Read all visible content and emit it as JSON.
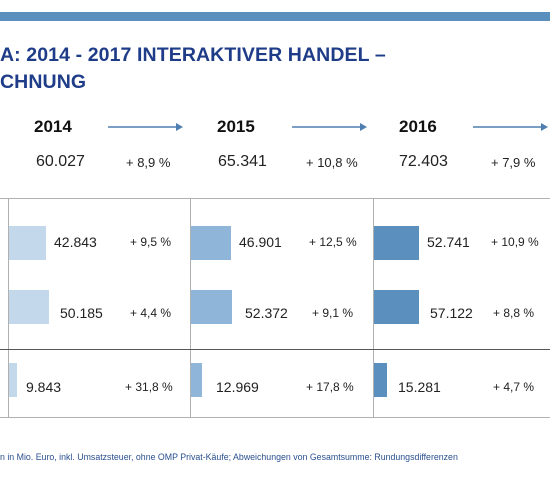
{
  "header": {
    "title_line1": "A: 2014 - 2017 INTERAKTIVER HANDEL –",
    "title_line2": "CHNUNG"
  },
  "columns": [
    {
      "year": "2014",
      "total": "60.027",
      "growth": "+ 8,9 %"
    },
    {
      "year": "2015",
      "total": "65.341",
      "growth": "+ 10,8 %"
    },
    {
      "year": "2016",
      "total": "72.403",
      "growth": "+ 7,9 %"
    }
  ],
  "rows": [
    {
      "cells": [
        {
          "value": "42.843",
          "change": "+ 9,5 %"
        },
        {
          "value": "46.901",
          "change": "+ 12,5 %"
        },
        {
          "value": "52.741",
          "change": "+ 10,9 %"
        }
      ]
    },
    {
      "cells": [
        {
          "value": "50.185",
          "change": "+ 4,4 %"
        },
        {
          "value": "52.372",
          "change": "+ 9,1 %"
        },
        {
          "value": "57.122",
          "change": "+ 8,8 %"
        }
      ]
    },
    {
      "cells": [
        {
          "value": "9.843",
          "change": "+ 31,8 %"
        },
        {
          "value": "12.969",
          "change": "+ 17,8 %"
        },
        {
          "value": "15.281",
          "change": "+ 4,7 %"
        }
      ]
    }
  ],
  "footnote": "n in Mio. Euro, inkl. Umsatzsteuer, ohne OMP Privat-Käufe; Abweichungen von Gesamtsumme: Rundungsdifferenzen",
  "colors": {
    "bar_2014": "#c3d9eb",
    "bar_2015": "#8fb6d8",
    "bar_2016": "#5b8fbe",
    "title": "#1f3c88",
    "accent": "#5b8fbe"
  },
  "chart_data": {
    "type": "bar",
    "categories": [
      "2014",
      "2015",
      "2016"
    ],
    "series": [
      {
        "values": [
          42843,
          46901,
          52741
        ]
      },
      {
        "values": [
          50185,
          52372,
          57122
        ]
      },
      {
        "values": [
          9843,
          12969,
          15281
        ]
      }
    ],
    "totals": [
      60027,
      65341,
      72403
    ],
    "total_growth": [
      "+ 8,9 %",
      "+ 10,8 %",
      "+ 7,9 %"
    ],
    "series_growth": [
      [
        "+ 9,5 %",
        "+ 12,5 %",
        "+ 10,9 %"
      ],
      [
        "+ 4,4 %",
        "+ 9,1 %",
        "+ 8,8 %"
      ],
      [
        "+ 31,8 %",
        "+ 17,8 %",
        "+ 4,7 %"
      ]
    ]
  }
}
